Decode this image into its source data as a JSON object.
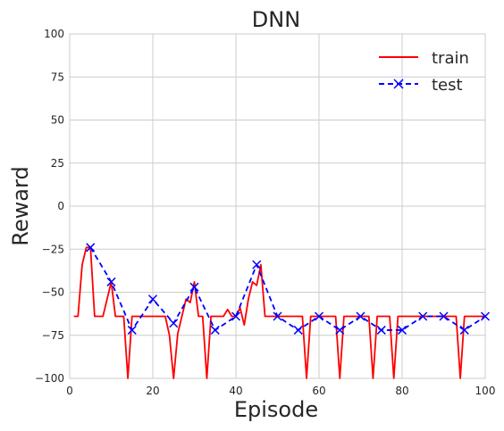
{
  "chart_data": {
    "type": "line",
    "title": "DNN",
    "xlabel": "Episode",
    "ylabel": "Reward",
    "xlim": [
      0,
      100
    ],
    "ylim": [
      -100,
      100
    ],
    "xticks": [
      "0",
      "20",
      "40",
      "60",
      "80",
      "100"
    ],
    "yticks": [
      "−100",
      "−75",
      "−50",
      "−25",
      "0",
      "25",
      "50",
      "75",
      "100"
    ],
    "xtick_values": [
      0,
      20,
      40,
      60,
      80,
      100
    ],
    "ytick_values": [
      -100,
      -75,
      -50,
      -25,
      0,
      25,
      50,
      75,
      100
    ],
    "grid": true,
    "legend_position": "top-right",
    "series": [
      {
        "name": "train",
        "color": "#ff0000",
        "style": "solid",
        "marker": "none",
        "x": [
          1,
          2,
          3,
          4,
          5,
          6,
          7,
          8,
          9,
          10,
          11,
          12,
          13,
          14,
          15,
          16,
          17,
          18,
          19,
          20,
          21,
          22,
          23,
          24,
          25,
          26,
          27,
          28,
          29,
          30,
          31,
          32,
          33,
          34,
          35,
          36,
          37,
          38,
          39,
          40,
          41,
          42,
          43,
          44,
          45,
          46,
          47,
          48,
          49,
          50,
          51,
          52,
          53,
          54,
          55,
          56,
          57,
          58,
          59,
          60,
          61,
          62,
          63,
          64,
          65,
          66,
          67,
          68,
          69,
          70,
          71,
          72,
          73,
          74,
          75,
          76,
          77,
          78,
          79,
          80,
          81,
          82,
          83,
          84,
          85,
          86,
          87,
          88,
          89,
          90,
          91,
          92,
          93,
          94,
          95,
          96,
          97,
          98,
          99,
          100
        ],
        "y": [
          -64,
          -64,
          -34,
          -24,
          -24,
          -64,
          -64,
          -64,
          -54,
          -44,
          -64,
          -64,
          -64,
          -100,
          -64,
          -64,
          -64,
          -64,
          -64,
          -64,
          -64,
          -64,
          -64,
          -75,
          -100,
          -74,
          -64,
          -54,
          -56,
          -44,
          -64,
          -64,
          -100,
          -64,
          -64,
          -64,
          -64,
          -60,
          -64,
          -64,
          -59,
          -69,
          -54,
          -44,
          -46,
          -34,
          -64,
          -64,
          -64,
          -64,
          -64,
          -64,
          -64,
          -64,
          -64,
          -64,
          -100,
          -64,
          -64,
          -64,
          -64,
          -64,
          -64,
          -64,
          -100,
          -64,
          -64,
          -64,
          -64,
          -64,
          -64,
          -64,
          -100,
          -64,
          -64,
          -64,
          -64,
          -100,
          -64,
          -64,
          -64,
          -64,
          -64,
          -64,
          -64,
          -64,
          -64,
          -64,
          -64,
          -64,
          -64,
          -64,
          -64,
          -100,
          -64,
          -64,
          -64,
          -64,
          -64,
          -64
        ]
      },
      {
        "name": "test",
        "color": "#0000ff",
        "style": "dashed",
        "marker": "x",
        "x": [
          5,
          10,
          15,
          20,
          25,
          30,
          35,
          40,
          45,
          50,
          55,
          60,
          65,
          70,
          75,
          80,
          85,
          90,
          95,
          100
        ],
        "y": [
          -24,
          -44,
          -72,
          -54,
          -68,
          -47,
          -72,
          -64,
          -34,
          -64,
          -72,
          -64,
          -72,
          -64,
          -72,
          -72,
          -64,
          -64,
          -72,
          -64
        ]
      }
    ]
  }
}
